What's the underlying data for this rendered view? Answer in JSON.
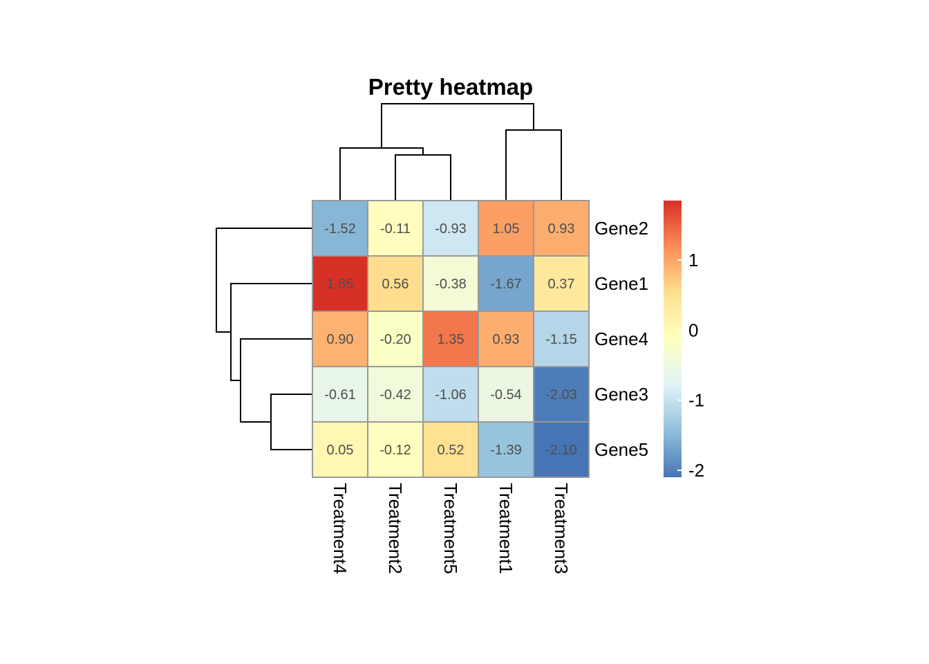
{
  "chart_data": {
    "type": "heatmap",
    "title": "Pretty heatmap",
    "columns": [
      "Treatment4",
      "Treatment2",
      "Treatment5",
      "Treatment1",
      "Treatment3"
    ],
    "rows": [
      "Gene2",
      "Gene1",
      "Gene4",
      "Gene3",
      "Gene5"
    ],
    "values": [
      [
        -1.52,
        -0.11,
        -0.93,
        1.05,
        0.93
      ],
      [
        1.85,
        0.56,
        -0.38,
        -1.67,
        0.37
      ],
      [
        0.9,
        -0.2,
        1.35,
        0.93,
        -1.15
      ],
      [
        -0.61,
        -0.42,
        -1.06,
        -0.54,
        -2.03
      ],
      [
        0.05,
        -0.12,
        0.52,
        -1.39,
        -2.1
      ]
    ],
    "number_format": "2 decimals",
    "cluster_rows": true,
    "cluster_cols": true,
    "color_scale": {
      "stops": [
        "#4575B4",
        "#91BFDB",
        "#E0F3F8",
        "#FFFFBF",
        "#FEE090",
        "#FC8D59",
        "#D73027"
      ],
      "range": [
        -2.1,
        1.85
      ],
      "ticks": [
        -2,
        -1,
        0,
        1
      ],
      "tick_labels": [
        "-2",
        "-1",
        "0",
        "1"
      ]
    },
    "cell_border_color": "#999999",
    "legend_position": "right"
  }
}
